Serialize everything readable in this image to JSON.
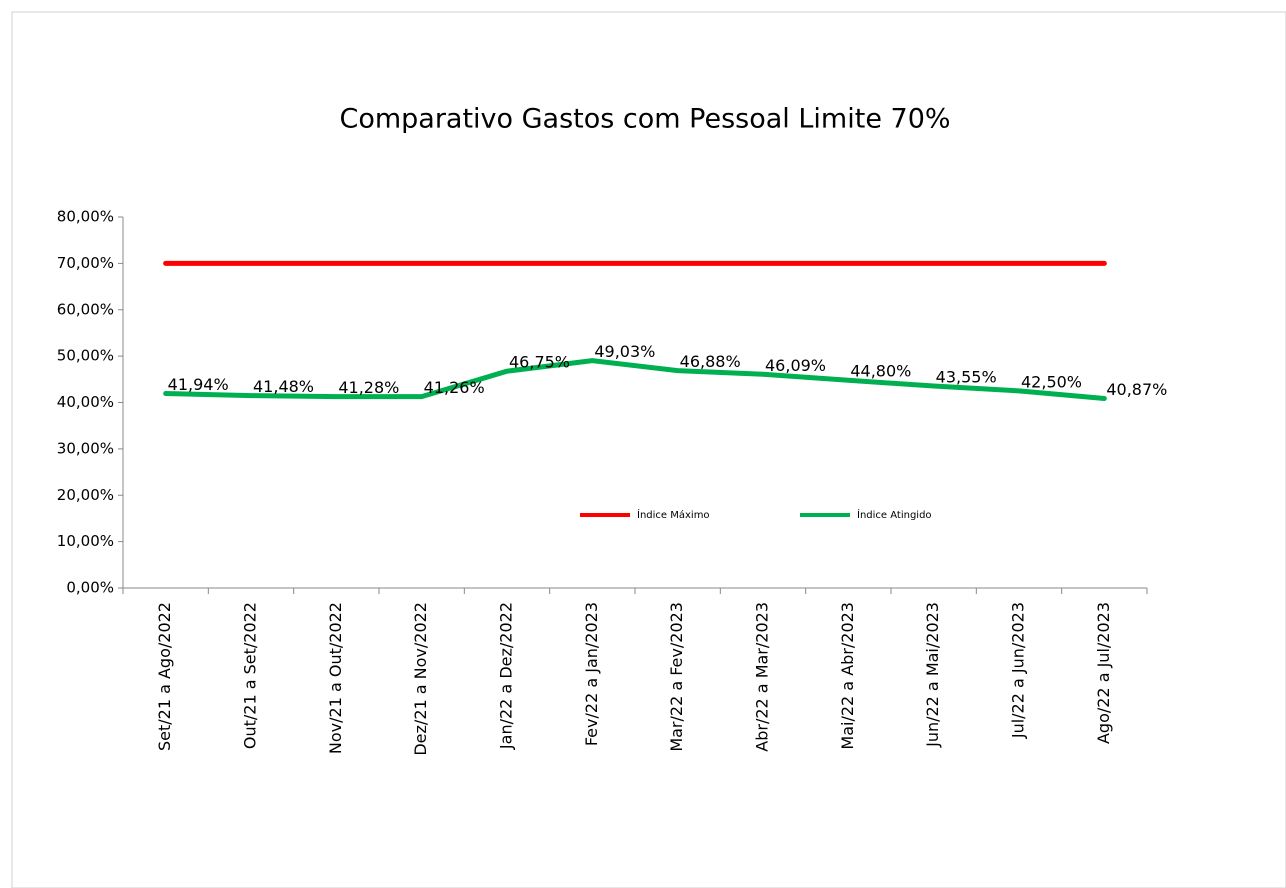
{
  "chart_data": {
    "type": "line",
    "title": "Comparativo Gastos com Pessoal Limite 70%",
    "categories": [
      "Set/21 a Ago/2022",
      "Out/21 a Set/2022",
      "Nov/21 a Out/2022",
      "Dez/21 a Nov/2022",
      "Jan/22 a Dez/2022",
      "Fev/22 a Jan/2023",
      "Mar/22 a Fev/2023",
      "Abr/22 a Mar/2023",
      "Mai/22 a Abr/2023",
      "Jun/22 a Mai/2023",
      "Jul/22 a Jun/2023",
      "Ago/22 a Jul/2023"
    ],
    "series": [
      {
        "name": "Índice Máximo",
        "color": "#ff0000",
        "values": [
          70,
          70,
          70,
          70,
          70,
          70,
          70,
          70,
          70,
          70,
          70,
          70
        ]
      },
      {
        "name": "Índice Atingido",
        "color": "#00b050",
        "values": [
          41.94,
          41.48,
          41.28,
          41.26,
          46.75,
          49.03,
          46.88,
          46.09,
          44.8,
          43.55,
          42.5,
          40.87
        ],
        "value_labels": [
          "41,94%",
          "41,48%",
          "41,28%",
          "41,26%",
          "46,75%",
          "49,03%",
          "46,88%",
          "46,09%",
          "44,80%",
          "43,55%",
          "42,50%",
          "40,87%"
        ]
      }
    ],
    "ylim": [
      0,
      80
    ],
    "yticks": [
      {
        "value": 0,
        "label": "0,00%"
      },
      {
        "value": 10,
        "label": "10,00%"
      },
      {
        "value": 20,
        "label": "20,00%"
      },
      {
        "value": 30,
        "label": "30,00%"
      },
      {
        "value": 40,
        "label": "40,00%"
      },
      {
        "value": 50,
        "label": "50,00%"
      },
      {
        "value": 60,
        "label": "60,00%"
      },
      {
        "value": 70,
        "label": "70,00%"
      },
      {
        "value": 80,
        "label": "80,00%"
      }
    ]
  }
}
